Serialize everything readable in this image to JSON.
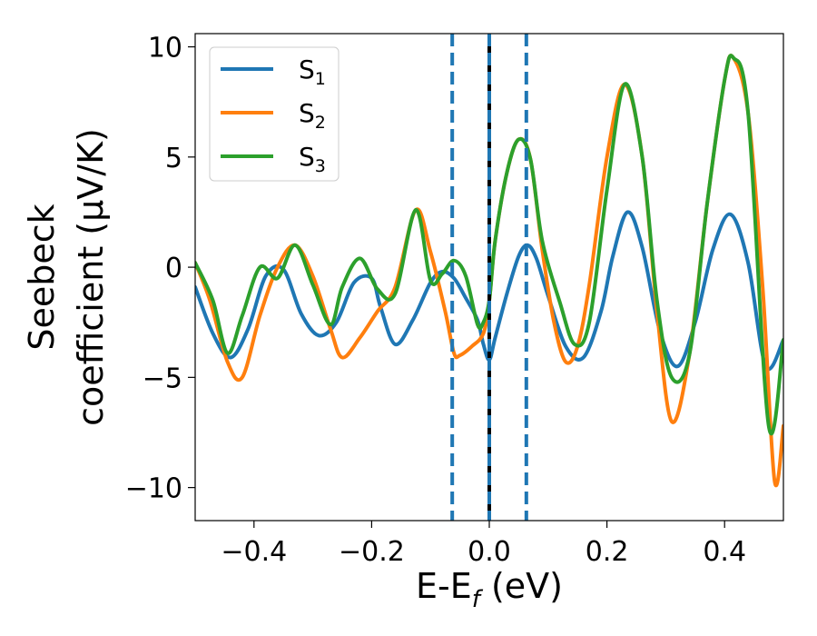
{
  "chart_data": {
    "type": "line",
    "xlabel": {
      "main": "E-E",
      "sub": "f",
      "unit": " (eV)"
    },
    "ylabel": {
      "line1": "Seebeck",
      "line2": "coefficient  (μV/K)"
    },
    "xlim": [
      -0.5,
      0.5
    ],
    "ylim": [
      -11.5,
      10.6
    ],
    "xticks": [
      -0.4,
      -0.2,
      0.0,
      0.2,
      0.4
    ],
    "xtick_labels": [
      "−0.4",
      "−0.2",
      "0.0",
      "0.2",
      "0.4"
    ],
    "yticks": [
      -10,
      -5,
      0,
      5,
      10
    ],
    "ytick_labels": [
      "−10",
      "−5",
      "0",
      "5",
      "10"
    ],
    "legend_position": "top-left",
    "vlines": [
      {
        "x": -0.063,
        "style": "dashed",
        "color": "#1f77b4"
      },
      {
        "x": 0.0,
        "style": "solid",
        "color": "#000000"
      },
      {
        "x": 0.0,
        "style": "dashed",
        "color": "#1f77b4"
      },
      {
        "x": 0.063,
        "style": "dashed",
        "color": "#1f77b4"
      }
    ],
    "series": [
      {
        "name": "S",
        "sub": "1",
        "color": "#1f77b4",
        "x": [
          -0.5,
          -0.47,
          -0.44,
          -0.41,
          -0.38,
          -0.35,
          -0.32,
          -0.29,
          -0.26,
          -0.23,
          -0.2,
          -0.185,
          -0.16,
          -0.13,
          -0.1,
          -0.08,
          -0.06,
          -0.04,
          -0.02,
          -0.01,
          0.0,
          0.01,
          0.03,
          0.05,
          0.065,
          0.08,
          0.1,
          0.13,
          0.16,
          0.19,
          0.21,
          0.235,
          0.26,
          0.29,
          0.32,
          0.35,
          0.38,
          0.41,
          0.44,
          0.47,
          0.5
        ],
        "y": [
          -0.9,
          -3.0,
          -4.1,
          -2.8,
          -0.4,
          -0.1,
          -2.1,
          -3.1,
          -2.5,
          -0.7,
          -0.5,
          -1.8,
          -3.5,
          -2.4,
          -0.7,
          -0.2,
          -0.5,
          -1.4,
          -2.4,
          -3.5,
          -4.2,
          -3.2,
          -1.2,
          0.5,
          1.0,
          0.4,
          -1.3,
          -3.6,
          -4.1,
          -2.0,
          0.5,
          2.5,
          0.9,
          -2.9,
          -4.5,
          -2.5,
          0.8,
          2.4,
          0.2,
          -4.5,
          -3.3
        ]
      },
      {
        "name": "S",
        "sub": "2",
        "color": "#ff7f0e",
        "x": [
          -0.5,
          -0.475,
          -0.445,
          -0.42,
          -0.39,
          -0.36,
          -0.33,
          -0.3,
          -0.27,
          -0.25,
          -0.22,
          -0.19,
          -0.16,
          -0.125,
          -0.1,
          -0.075,
          -0.06,
          -0.05,
          -0.03,
          -0.01,
          0.0,
          0.01,
          0.03,
          0.05,
          0.07,
          0.09,
          0.11,
          0.13,
          0.15,
          0.17,
          0.2,
          0.23,
          0.26,
          0.285,
          0.31,
          0.34,
          0.37,
          0.4,
          0.415,
          0.44,
          0.465,
          0.485,
          0.5
        ],
        "y": [
          0.2,
          -1.5,
          -4.3,
          -5.0,
          -2.2,
          0.0,
          1.0,
          -0.4,
          -2.8,
          -4.1,
          -3.2,
          -2.0,
          -0.9,
          2.6,
          0.7,
          -2.0,
          -3.9,
          -4.0,
          -3.6,
          -3.0,
          -1.5,
          1.2,
          4.3,
          5.8,
          4.9,
          0.8,
          -2.5,
          -4.3,
          -3.6,
          -0.8,
          5.0,
          8.3,
          5.0,
          -2.0,
          -7.0,
          -4.0,
          2.8,
          8.5,
          9.5,
          7.0,
          -1.0,
          -9.7,
          -7.2
        ]
      },
      {
        "name": "S",
        "sub": "3",
        "color": "#2ca02c",
        "x": [
          -0.5,
          -0.47,
          -0.445,
          -0.42,
          -0.39,
          -0.36,
          -0.33,
          -0.3,
          -0.27,
          -0.25,
          -0.22,
          -0.19,
          -0.16,
          -0.125,
          -0.1,
          -0.08,
          -0.06,
          -0.04,
          -0.02,
          -0.01,
          0.0,
          0.01,
          0.03,
          0.05,
          0.07,
          0.09,
          0.12,
          0.145,
          0.17,
          0.2,
          0.23,
          0.26,
          0.285,
          0.31,
          0.34,
          0.37,
          0.4,
          0.415,
          0.44,
          0.475,
          0.5
        ],
        "y": [
          0.2,
          -1.5,
          -3.9,
          -2.2,
          0.0,
          -0.5,
          1.0,
          -0.8,
          -2.6,
          -0.9,
          0.4,
          -1.0,
          -1.2,
          2.6,
          -0.6,
          -0.3,
          0.3,
          -0.4,
          -2.6,
          -2.5,
          -1.5,
          1.2,
          4.3,
          5.8,
          4.9,
          1.2,
          -1.6,
          -3.5,
          -2.5,
          3.5,
          8.3,
          5.0,
          -1.5,
          -5.0,
          -4.0,
          2.8,
          8.5,
          9.5,
          7.0,
          -7.2,
          -3.3
        ]
      }
    ]
  }
}
